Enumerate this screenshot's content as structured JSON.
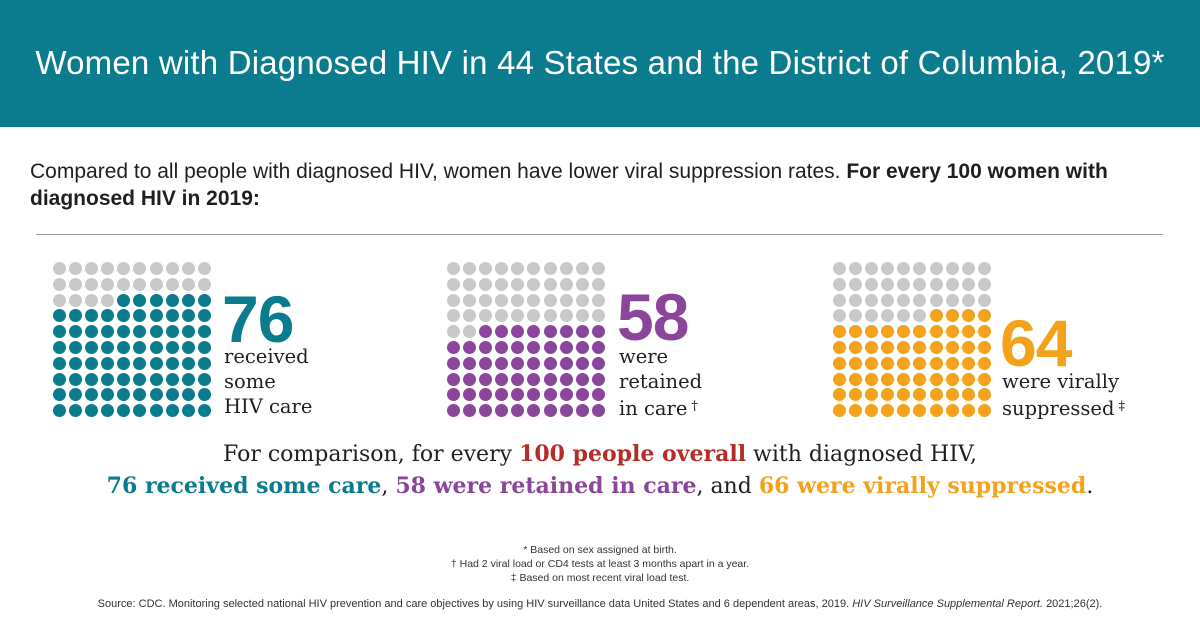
{
  "header": {
    "title": "Women with Diagnosed HIV in 44 States and the District of Columbia, 2019*"
  },
  "intro": {
    "text": "Compared to all people with diagnosed HIV, women have lower viral suppression rates.",
    "bold": "For every 100 women with diagnosed HIV in 2019:"
  },
  "colors": {
    "header_bg": "#0b7b8e",
    "empty_dot": "#c9c9cb",
    "teal": "#0b7b8e",
    "purple": "#8b469b",
    "orange": "#f2a21b",
    "red": "#b52d26"
  },
  "panels": [
    {
      "value": 76,
      "number": "76",
      "lines": [
        "received",
        "some",
        "HIV care"
      ],
      "mark": "",
      "color": "#0b7b8e"
    },
    {
      "value": 58,
      "number": "58",
      "lines": [
        "were",
        "retained",
        "in care"
      ],
      "mark": "†",
      "color": "#8b469b"
    },
    {
      "value": 64,
      "number": "64",
      "lines": [
        "were virally",
        "suppressed"
      ],
      "mark": "‡",
      "color": "#f2a21b"
    }
  ],
  "comparison": {
    "line1_pre": "For comparison, for every ",
    "line1_highlight": "100 people overall",
    "line1_post": " with diagnosed HIV,",
    "care": "76 received some care",
    "sep1": ", ",
    "retained": "58 were retained in care",
    "sep2": ", and ",
    "suppressed": "66 were virally suppressed",
    "end": "."
  },
  "footnotes": [
    "* Based on sex assigned at birth.",
    "† Had 2 viral load or CD4 tests at least 3 months apart in a year.",
    "‡ Based on most recent viral load test."
  ],
  "source": {
    "text": "Source: CDC. Monitoring selected national HIV prevention and care objectives by using HIV surveillance data United States and 6 dependent areas, 2019.",
    "journal": "HIV Surveillance Supplemental Report.",
    "citation": "2021;26(2)."
  }
}
